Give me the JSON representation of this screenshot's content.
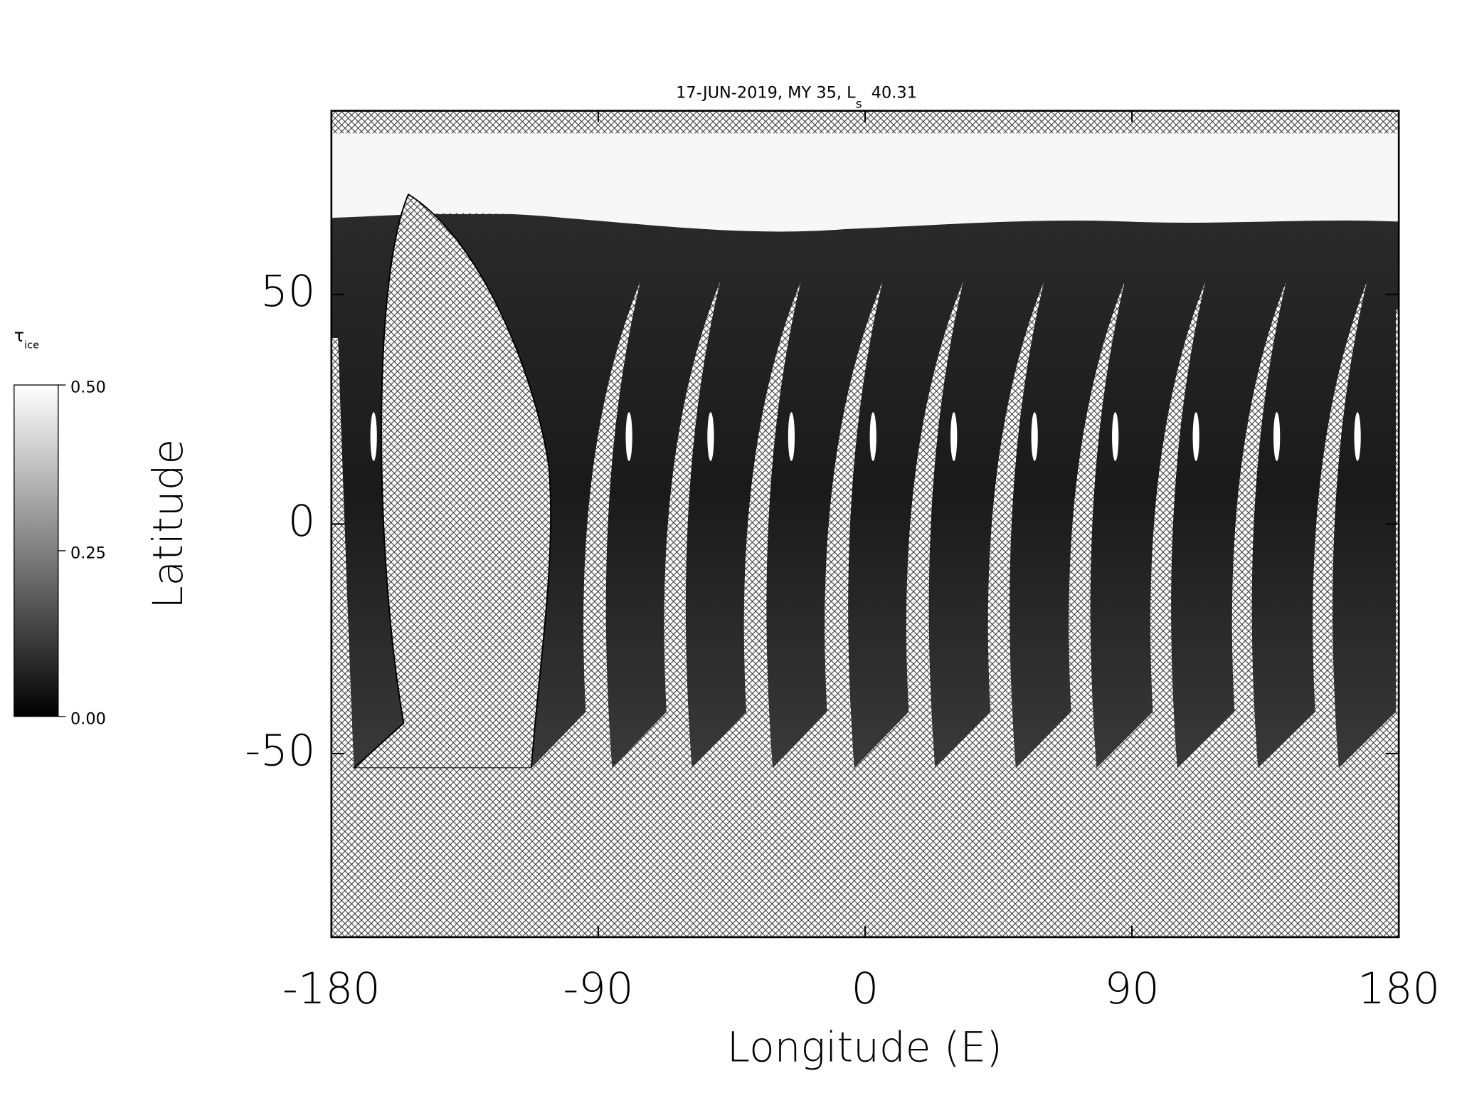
{
  "chart_data": {
    "type": "map",
    "title": {
      "text": "17-JUN-2019, MY 35,  L",
      "subscript": "s",
      "value": "40.31"
    },
    "xlabel": "Longitude (E)",
    "ylabel": "Latitude",
    "xlim": [
      -180,
      180
    ],
    "ylim": [
      -90,
      90
    ],
    "xticks": [
      -180,
      -90,
      0,
      90,
      180
    ],
    "yticks": [
      -50,
      0,
      50
    ],
    "colorbar": {
      "label": "τ",
      "label_subscript": "ice",
      "lim": [
        0,
        0.5
      ],
      "ticks": [
        {
          "value": 0,
          "label": "0.00"
        },
        {
          "value": 0.25,
          "label": "0.25"
        },
        {
          "value": 0.5,
          "label": "0.50"
        }
      ]
    }
  }
}
